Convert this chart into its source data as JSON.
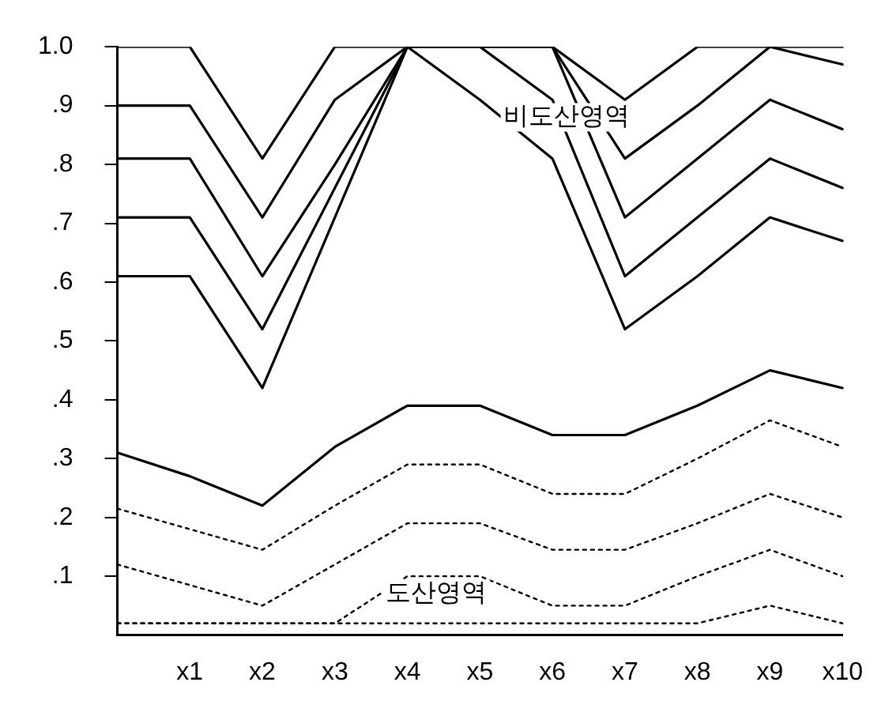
{
  "chart_data": {
    "type": "line",
    "categories": [
      null,
      "x1",
      "x2",
      "x3",
      "x4",
      "x5",
      "x6",
      "x7",
      "x8",
      "x9",
      "x10"
    ],
    "ylim": [
      0,
      1
    ],
    "yticks": [
      {
        "value": 0.1,
        "label": ".1"
      },
      {
        "value": 0.2,
        "label": ".2"
      },
      {
        "value": 0.3,
        "label": ".3"
      },
      {
        "value": 0.4,
        "label": ".4"
      },
      {
        "value": 0.5,
        "label": ".5"
      },
      {
        "value": 0.6,
        "label": ".6"
      },
      {
        "value": 0.7,
        "label": ".7"
      },
      {
        "value": 0.8,
        "label": ".8"
      },
      {
        "value": 0.9,
        "label": ".9"
      },
      {
        "value": 1.0,
        "label": "1.0"
      }
    ],
    "grid": false,
    "legend": false,
    "marker": "none",
    "series": [
      {
        "color": "#000000",
        "line_style": "solid",
        "values": [
          1.0,
          1.0,
          0.81,
          1.0,
          1.0,
          1.0,
          1.0,
          0.91,
          1.0,
          1.0,
          1.0
        ]
      },
      {
        "color": "#000000",
        "line_style": "solid",
        "values": [
          0.9,
          0.9,
          0.71,
          0.91,
          1.0,
          1.0,
          1.0,
          0.81,
          0.9,
          1.0,
          0.97
        ]
      },
      {
        "color": "#000000",
        "line_style": "solid",
        "values": [
          0.81,
          0.81,
          0.61,
          0.8,
          1.0,
          1.0,
          1.0,
          0.71,
          0.81,
          0.91,
          0.86
        ]
      },
      {
        "color": "#000000",
        "line_style": "solid",
        "values": [
          0.71,
          0.71,
          0.52,
          0.76,
          1.0,
          1.0,
          0.91,
          0.61,
          0.71,
          0.81,
          0.76
        ]
      },
      {
        "color": "#000000",
        "line_style": "solid",
        "values": [
          0.61,
          0.61,
          0.42,
          0.71,
          1.0,
          0.91,
          0.81,
          0.52,
          0.61,
          0.71,
          0.67
        ]
      },
      {
        "color": "#000000",
        "line_style": "solid",
        "values": [
          0.31,
          0.27,
          0.22,
          0.32,
          0.39,
          0.39,
          0.34,
          0.34,
          0.39,
          0.45,
          0.42
        ]
      },
      {
        "color": "#000000",
        "line_style": "dotted",
        "values": [
          0.215,
          0.18,
          0.145,
          0.22,
          0.29,
          0.29,
          0.24,
          0.24,
          0.3,
          0.365,
          0.32
        ]
      },
      {
        "color": "#000000",
        "line_style": "dotted",
        "values": [
          0.12,
          0.085,
          0.05,
          0.12,
          0.19,
          0.19,
          0.145,
          0.145,
          0.19,
          0.24,
          0.2
        ]
      },
      {
        "color": "#000000",
        "line_style": "dotted",
        "values": [
          0.02,
          0.02,
          0.02,
          0.02,
          0.1,
          0.1,
          0.05,
          0.05,
          0.1,
          0.145,
          0.1
        ]
      },
      {
        "color": "#000000",
        "line_style": "dotted",
        "values": [
          0.02,
          0.02,
          0.02,
          0.02,
          0.02,
          0.02,
          0.02,
          0.02,
          0.02,
          0.05,
          0.02
        ]
      }
    ],
    "annotations": [
      "비도산영역",
      "도산영역"
    ]
  }
}
